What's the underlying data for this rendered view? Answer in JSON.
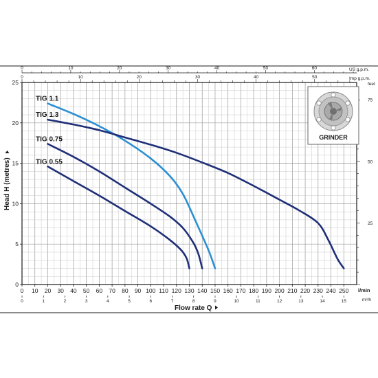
{
  "chart_data": {
    "type": "line",
    "x_primary": {
      "unit": "l/min",
      "range": [
        0,
        260
      ],
      "ticks": [
        0,
        10,
        20,
        30,
        40,
        50,
        60,
        70,
        80,
        90,
        100,
        110,
        120,
        130,
        140,
        150,
        160,
        170,
        180,
        190,
        200,
        210,
        220,
        230,
        240,
        250
      ]
    },
    "x_m3h": {
      "unit": "m³/h",
      "ticks": [
        0,
        1,
        2,
        3,
        4,
        5,
        6,
        7,
        8,
        9,
        10,
        11,
        12,
        13,
        14,
        15
      ]
    },
    "x_us": {
      "unit": "US g.p.m.",
      "ticks": [
        0,
        10,
        20,
        30,
        40,
        50,
        60
      ]
    },
    "x_imp": {
      "unit": "Imp g.p.m.",
      "ticks": [
        0,
        10,
        20,
        30,
        40,
        50
      ]
    },
    "y_primary": {
      "range": [
        0,
        25
      ],
      "ticks": [
        0,
        5,
        10,
        15,
        20,
        25
      ]
    },
    "y_feet": {
      "unit": "feet",
      "ticks": [
        25,
        50,
        75
      ]
    },
    "xlabel": "Flow rate Q",
    "ylabel": "Head H (metres)",
    "grid": true,
    "series": [
      {
        "name": "TIG 1.1",
        "color": "#2a8fd4",
        "points": [
          [
            20,
            22.4
          ],
          [
            40,
            21.1
          ],
          [
            60,
            19.6
          ],
          [
            80,
            17.8
          ],
          [
            100,
            15.6
          ],
          [
            115,
            13.4
          ],
          [
            125,
            11.2
          ],
          [
            135,
            7.8
          ],
          [
            145,
            4.2
          ],
          [
            150,
            2.0
          ]
        ]
      },
      {
        "name": "TIG 1.3",
        "color": "#1f2f78",
        "points": [
          [
            20,
            20.4
          ],
          [
            40,
            19.8
          ],
          [
            60,
            19.1
          ],
          [
            80,
            18.2
          ],
          [
            100,
            17.3
          ],
          [
            120,
            16.3
          ],
          [
            140,
            15.1
          ],
          [
            160,
            13.8
          ],
          [
            180,
            12.2
          ],
          [
            200,
            10.5
          ],
          [
            215,
            9.2
          ],
          [
            230,
            7.6
          ],
          [
            238,
            5.5
          ],
          [
            245,
            3.2
          ],
          [
            250,
            2.0
          ]
        ]
      },
      {
        "name": "TIG 0.75",
        "color": "#1f2f78",
        "points": [
          [
            20,
            17.4
          ],
          [
            40,
            15.8
          ],
          [
            60,
            14.0
          ],
          [
            80,
            12.0
          ],
          [
            100,
            10.0
          ],
          [
            115,
            8.4
          ],
          [
            125,
            7.0
          ],
          [
            133,
            5.2
          ],
          [
            137,
            3.8
          ],
          [
            140,
            2.0
          ]
        ]
      },
      {
        "name": "TIG 0.55",
        "color": "#1f2f78",
        "points": [
          [
            20,
            14.6
          ],
          [
            40,
            12.8
          ],
          [
            60,
            11.0
          ],
          [
            80,
            9.1
          ],
          [
            100,
            7.2
          ],
          [
            115,
            5.5
          ],
          [
            124,
            4.2
          ],
          [
            128,
            3.2
          ],
          [
            130,
            2.0
          ]
        ]
      }
    ]
  },
  "icons": {
    "grinder": "grinder-impeller-icon"
  },
  "grinder_label": "GRINDER",
  "unit_lmin": "l/min",
  "unit_m3h": "m³/h",
  "unit_us": "US g.p.m.",
  "unit_imp": "Imp g.p.m.",
  "unit_feet": "feet",
  "xlabel": "Flow rate Q",
  "ylabel": "Head H (metres)"
}
